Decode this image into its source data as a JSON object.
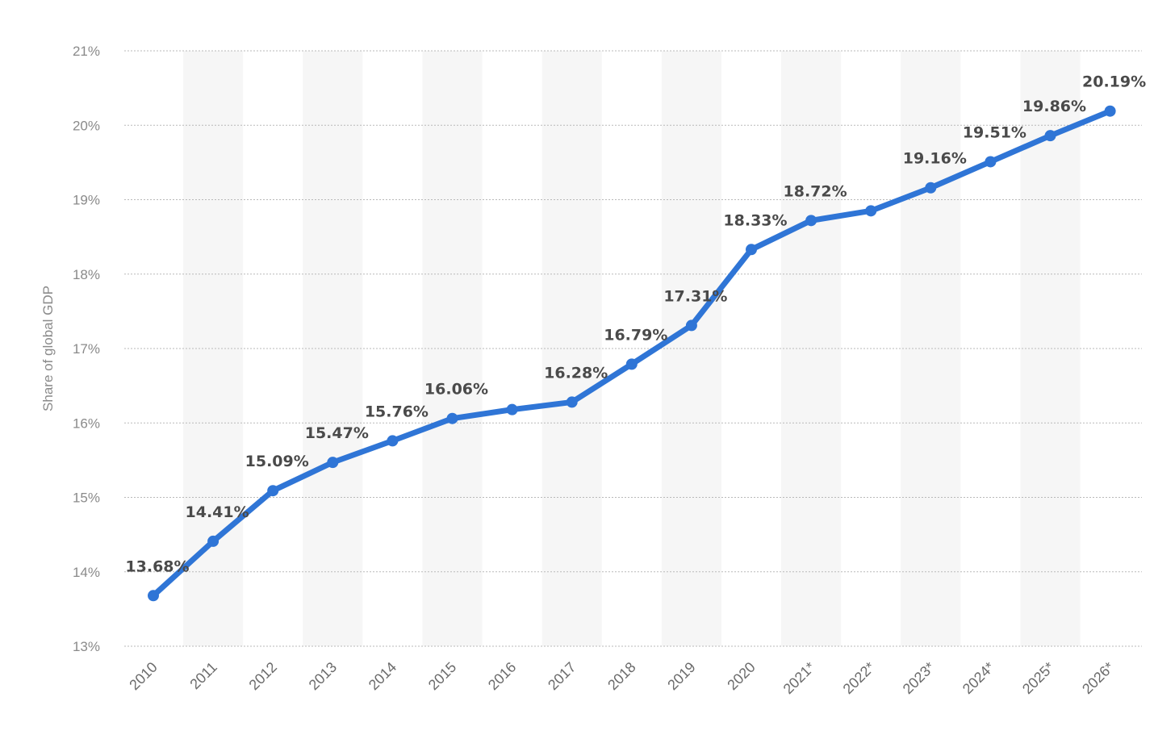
{
  "chart_data": {
    "type": "line",
    "title": "",
    "xlabel": "",
    "ylabel": "Share of global GDP",
    "ylim": [
      13,
      21
    ],
    "yticks": [
      "13%",
      "14%",
      "15%",
      "16%",
      "17%",
      "18%",
      "19%",
      "20%",
      "21%"
    ],
    "categories": [
      "2010",
      "2011",
      "2012",
      "2013",
      "2014",
      "2015",
      "2016",
      "2017",
      "2018",
      "2019",
      "2020",
      "2021*",
      "2022*",
      "2023*",
      "2024*",
      "2025*",
      "2026*"
    ],
    "series": [
      {
        "values": [
          13.68,
          14.41,
          15.09,
          15.47,
          15.76,
          16.06,
          16.18,
          16.28,
          16.79,
          17.31,
          18.33,
          18.72,
          18.85,
          19.16,
          19.51,
          19.86,
          20.19
        ],
        "labels": [
          "13.68%",
          "14.41%",
          "15.09%",
          "15.47%",
          "15.76%",
          "16.06%",
          "",
          "16.28%",
          "16.79%",
          "17.31%",
          "18.33%",
          "18.72%",
          "",
          "19.16%",
          "19.51%",
          "19.86%",
          "20.19%"
        ],
        "color": "#2f75d6"
      }
    ],
    "grid": true,
    "legend": "none",
    "alternating_column_bands": true
  }
}
